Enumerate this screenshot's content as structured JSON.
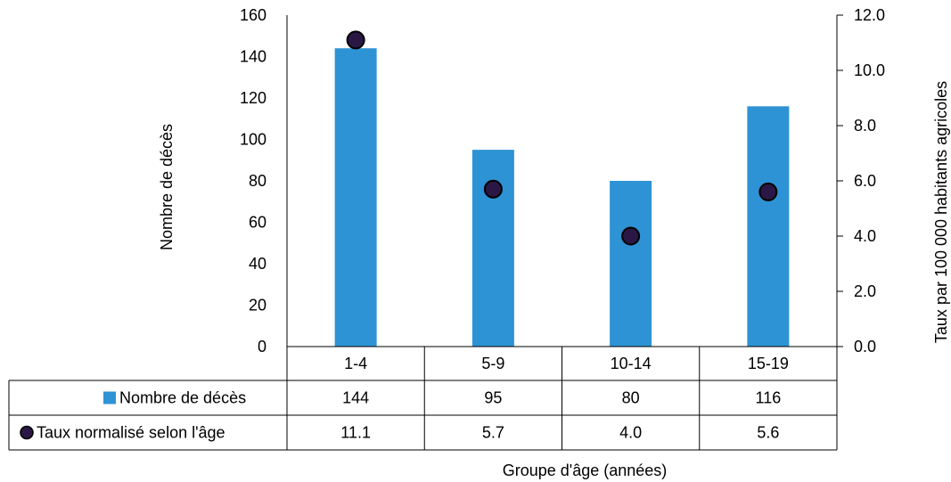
{
  "chart_data": {
    "type": "bar",
    "categories": [
      "1-4",
      "5-9",
      "10-14",
      "15-19"
    ],
    "series": [
      {
        "name": "Nombre de décès",
        "type": "bar",
        "axis": "left",
        "values": [
          144,
          95,
          80,
          116
        ],
        "color": "#2e93d4"
      },
      {
        "name": "Taux normalisé selon l'âge",
        "type": "scatter",
        "axis": "right",
        "values": [
          11.1,
          5.7,
          4.0,
          5.6
        ],
        "display_values": [
          "11.1",
          "5.7",
          "4.0",
          "5.6"
        ],
        "color": "#2a1745"
      }
    ],
    "xlabel": "Groupe d'âge (années)",
    "ylabel": "Nombre de décès",
    "y2label": "Taux par 100 000 habitants agricoles",
    "ylim": [
      0,
      160
    ],
    "y2lim": [
      0,
      12
    ],
    "yticks": [
      "0",
      "20",
      "40",
      "60",
      "80",
      "100",
      "120",
      "140",
      "160"
    ],
    "y2ticks": [
      "0.0",
      "2.0",
      "4.0",
      "6.0",
      "8.0",
      "10.0",
      "12.0"
    ],
    "grid": false,
    "legend": "data-table"
  }
}
